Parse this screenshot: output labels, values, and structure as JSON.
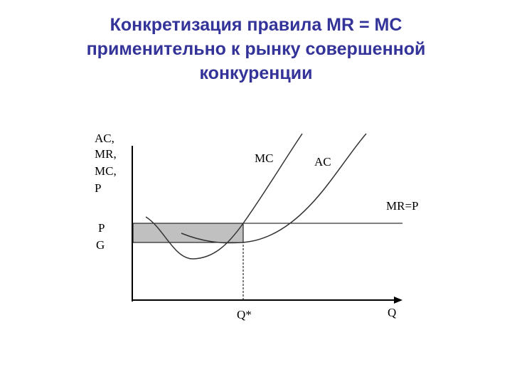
{
  "title": {
    "lines": [
      "Конкретизация правила MR = MC",
      "применительно к рынку совершенной",
      "конкуренции"
    ]
  },
  "diagram": {
    "y_axis_label": [
      "AC,",
      "MR,",
      "MC,",
      "P"
    ],
    "price_label": "P",
    "cost_label": "G",
    "mc_label": "MC",
    "ac_label": "AC",
    "mr_label": "MR=P",
    "quantity_label": "Q*",
    "x_axis_label": "Q"
  }
}
